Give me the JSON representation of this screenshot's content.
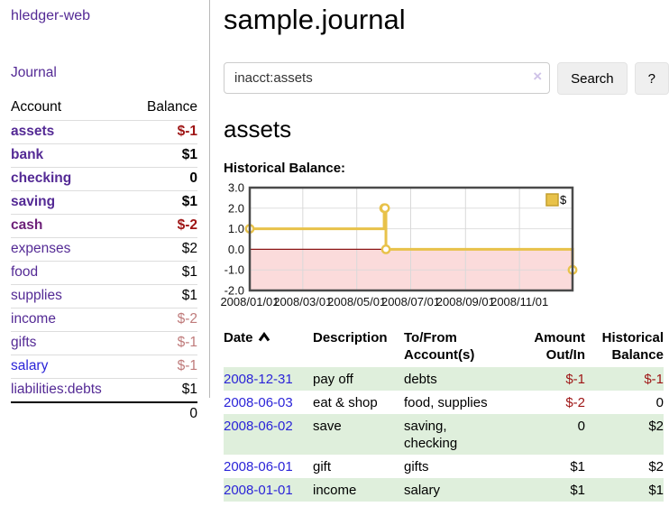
{
  "app": {
    "brand": "hledger-web",
    "nav_journal": "Journal"
  },
  "sidebar_accounts": {
    "col_account": "Account",
    "col_balance": "Balance",
    "rows": [
      {
        "name": "assets",
        "indent": 0,
        "bold": true,
        "name_color": "purple",
        "balance": "$-1",
        "balance_color": "red"
      },
      {
        "name": "bank",
        "indent": 1,
        "bold": true,
        "name_color": "purple",
        "balance": "$1",
        "balance_color": "black"
      },
      {
        "name": "checking",
        "indent": 2,
        "bold": true,
        "name_color": "purple",
        "balance": "0",
        "balance_color": "black"
      },
      {
        "name": "saving",
        "indent": 2,
        "bold": true,
        "name_color": "purple",
        "balance": "$1",
        "balance_color": "black"
      },
      {
        "name": "cash",
        "indent": 1,
        "bold": true,
        "name_color": "magenta",
        "balance": "$-2",
        "balance_color": "red"
      },
      {
        "name": "expenses",
        "indent": 0,
        "bold": false,
        "name_color": "purple",
        "balance": "$2",
        "balance_color": "black"
      },
      {
        "name": "food",
        "indent": 1,
        "bold": false,
        "name_color": "purple",
        "balance": "$1",
        "balance_color": "black"
      },
      {
        "name": "supplies",
        "indent": 1,
        "bold": false,
        "name_color": "purple",
        "balance": "$1",
        "balance_color": "black"
      },
      {
        "name": "income",
        "indent": 0,
        "bold": false,
        "name_color": "purple",
        "balance": "$-2",
        "balance_color": "rose"
      },
      {
        "name": "gifts",
        "indent": 1,
        "bold": false,
        "name_color": "purple",
        "balance": "$-1",
        "balance_color": "rose"
      },
      {
        "name": "salary",
        "indent": 1,
        "bold": false,
        "name_color": "blue",
        "balance": "$-1",
        "balance_color": "rose"
      },
      {
        "name": "liabilities:debts",
        "indent": 0,
        "bold": false,
        "name_color": "purple",
        "balance": "$1",
        "balance_color": "black"
      }
    ],
    "total": "0"
  },
  "header": {
    "title": "sample.journal"
  },
  "search": {
    "value": "inacct:assets",
    "clear_icon": "×",
    "search_button": "Search",
    "help_button": "?"
  },
  "account_page": {
    "heading": "assets",
    "chart_heading": "Historical Balance:"
  },
  "chart_data": {
    "type": "line",
    "step": true,
    "title": "Historical Balance:",
    "series_name": "$",
    "x": [
      "2008-01-01",
      "2008-06-01",
      "2008-06-02",
      "2008-06-03",
      "2008-12-31"
    ],
    "y": [
      1,
      2,
      2,
      0,
      -1
    ],
    "x_range": [
      "2008-01-01",
      "2008-12-31"
    ],
    "ylim": [
      -2,
      3
    ],
    "yticks": [
      3.0,
      2.0,
      1.0,
      0.0,
      -1.0,
      -2.0
    ],
    "xtick_dates": [
      "2008-01-01",
      "2008-03-01",
      "2008-05-01",
      "2008-07-01",
      "2008-09-01",
      "2008-11-01"
    ],
    "xtick_labels": [
      "2008/01/01",
      "2008/03/01",
      "2008/05/01",
      "2008/07/01",
      "2008/09/01",
      "2008/11/01"
    ],
    "line_color": "#e8c24a",
    "negative_region_color": "#fbdbdb",
    "zero_line_color": "#8c1717",
    "grid": true,
    "legend_position": "top-right"
  },
  "register": {
    "headers": {
      "date": "Date",
      "description": "Description",
      "accounts": "To/From Account(s)",
      "amount": "Amount Out/In",
      "balance": "Historical Balance"
    },
    "rows": [
      {
        "date": "2008-12-31",
        "description": "pay off",
        "accounts": "debts",
        "amount": "$-1",
        "amount_negative": true,
        "balance": "$-1",
        "balance_negative": true,
        "shaded": true
      },
      {
        "date": "2008-06-03",
        "description": "eat & shop",
        "accounts": "food, supplies",
        "amount": "$-2",
        "amount_negative": true,
        "balance": "0",
        "balance_negative": false,
        "shaded": false
      },
      {
        "date": "2008-06-02",
        "description": "save",
        "accounts": "saving, checking",
        "amount": "0",
        "amount_negative": false,
        "balance": "$2",
        "balance_negative": false,
        "shaded": true
      },
      {
        "date": "2008-06-01",
        "description": "gift",
        "accounts": "gifts",
        "amount": "$1",
        "amount_negative": false,
        "balance": "$2",
        "balance_negative": false,
        "shaded": false
      },
      {
        "date": "2008-01-01",
        "description": "income",
        "accounts": "salary",
        "amount": "$1",
        "amount_negative": false,
        "balance": "$1",
        "balance_negative": false,
        "shaded": true
      }
    ]
  }
}
